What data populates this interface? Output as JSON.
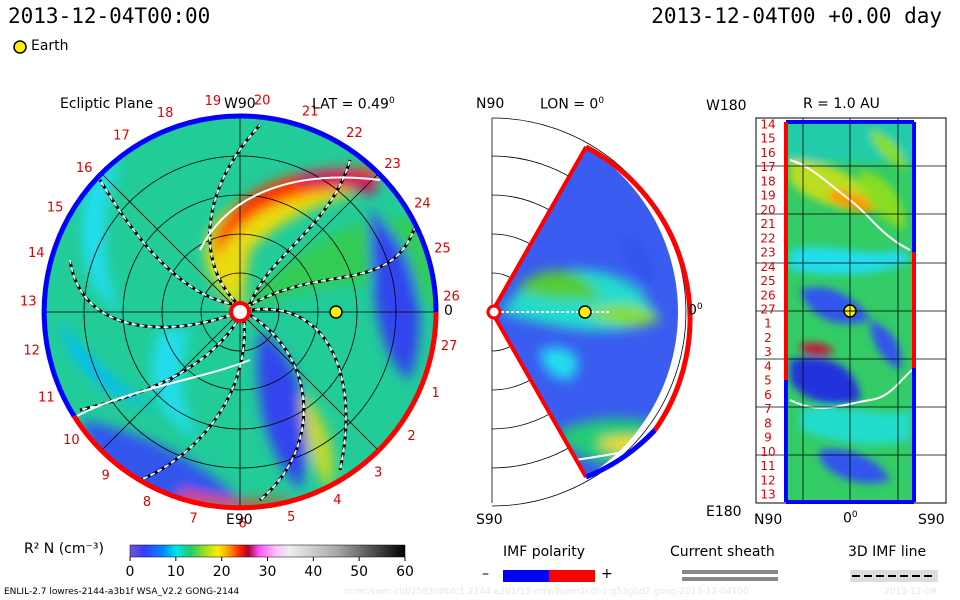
{
  "header": {
    "left_time": "2013-12-04T00:00",
    "right_time": "2013-12-04T00 +0.00 day",
    "earth_label": "Earth"
  },
  "footer": {
    "model_info": "ENLIL-2.7 lowres-2144-a3b1f WSA_V2.2 GONG-2144",
    "watermark": "ccmc/swrc-cld/2583/dfbfc1.2144-a3b1f15-mcp1umn1cdl-1.g53gbd2.gong-2013-12-04T00",
    "watermark_date": "2013-12-09"
  },
  "panels": {
    "ecliptic": {
      "title": "Ecliptic Plane",
      "top_label": "W90",
      "bottom_label": "E90",
      "right_label": "0",
      "lat_label": "LAT = 0.49",
      "lat_deg": "0"
    },
    "meridional": {
      "top_label": "N90",
      "bottom_label": "S90",
      "lon_label": "LON = 0",
      "lon_deg": "0",
      "right_label": "0",
      "right_deg": "0"
    },
    "map": {
      "title": "R = 1.0 AU",
      "top_left": "W180",
      "bottom_left": "E180",
      "x_left": "N90",
      "x_mid": "0",
      "x_mid_deg": "0",
      "x_right": "S90"
    }
  },
  "colorbar": {
    "label": "R² N (cm⁻³)",
    "ticks": [
      "0",
      "10",
      "20",
      "30",
      "40",
      "50",
      "60"
    ],
    "colors": [
      "#6a5acd",
      "#3a3aff",
      "#00aaff",
      "#00e5e5",
      "#33cc66",
      "#88dd22",
      "#ffee00",
      "#ff9900",
      "#ff3300",
      "#cc0044",
      "#ff66ff",
      "#ffb0ff",
      "#e0e0e0",
      "#bbbbbb",
      "#888888",
      "#444444",
      "#000000"
    ]
  },
  "legend": {
    "imf_title": "IMF polarity",
    "imf_minus": "–",
    "imf_plus": "+",
    "sheath_title": "Current sheath",
    "imf3d_title": "3D IMF line",
    "minus_color": "#0000ff",
    "plus_color": "#ff0000"
  },
  "chart_data": {
    "type": "heatmap",
    "ecliptic_rim_labels": [
      "20",
      "21",
      "22",
      "23",
      "24",
      "25",
      "26",
      "27",
      "1",
      "2",
      "3",
      "4",
      "5",
      "6",
      "7",
      "8",
      "9",
      "10",
      "11",
      "12",
      "13",
      "14",
      "15",
      "16",
      "17",
      "18",
      "19"
    ],
    "map_y_ticks": [
      "14",
      "15",
      "16",
      "17",
      "18",
      "19",
      "20",
      "21",
      "22",
      "23",
      "24",
      "25",
      "26",
      "27",
      "1",
      "2",
      "3",
      "4",
      "5",
      "6",
      "7",
      "8",
      "9",
      "10",
      "11",
      "12",
      "13"
    ],
    "quantity": "R² N (cm⁻³)",
    "colorbar_range": [
      0,
      60
    ]
  }
}
